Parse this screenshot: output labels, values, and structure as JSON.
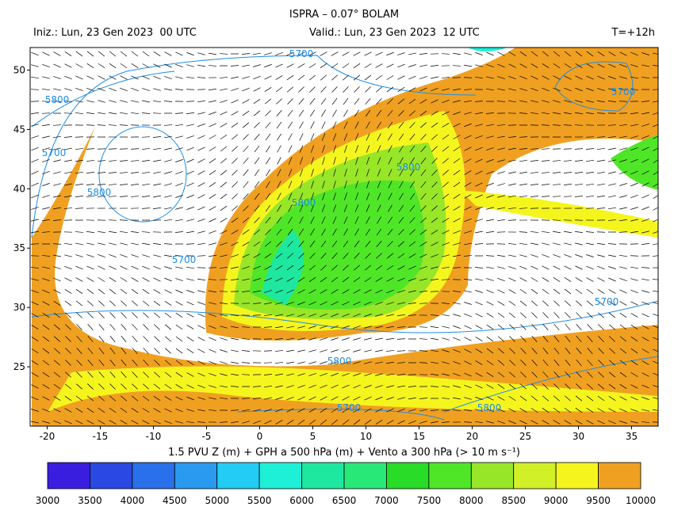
{
  "header": {
    "title": "ISPRA – 0.07° BOLAM",
    "init": "Iniz.: Lun, 23 Gen 2023  00 UTC",
    "valid": "Valid.: Lun, 23 Gen 2023  12 UTC",
    "lead": "T=+12h"
  },
  "map": {
    "xlim": [
      -21.6,
      37.5
    ],
    "ylim": [
      20,
      51.9
    ],
    "xticks": [
      -20,
      -15,
      -10,
      -5,
      0,
      5,
      10,
      15,
      20,
      25,
      30,
      35
    ],
    "yticks": [
      25,
      30,
      35,
      40,
      45,
      50
    ],
    "contour_labels": [
      5700,
      5700,
      5800,
      5700,
      5800,
      5800,
      5800,
      5700,
      5700,
      5800,
      5700,
      5800
    ],
    "contour_color": "#1e8ce6"
  },
  "caption": "1.5 PVU Z (m) + GPH a 500 hPa (m) + Vento a 300 hPa (> 10 m s⁻¹)",
  "colorbar": {
    "labels": [
      3000,
      3500,
      4000,
      4500,
      5000,
      5500,
      6000,
      6500,
      7000,
      7500,
      8000,
      8500,
      9000,
      9500,
      10000
    ],
    "colors": [
      "#3a1ee0",
      "#2a48e2",
      "#2a70ea",
      "#2a9af0",
      "#22ccf4",
      "#1ef0d8",
      "#1ee8a0",
      "#28e878",
      "#28dc28",
      "#50e628",
      "#98e628",
      "#d2f028",
      "#f5f51e",
      "#f0a020"
    ]
  }
}
